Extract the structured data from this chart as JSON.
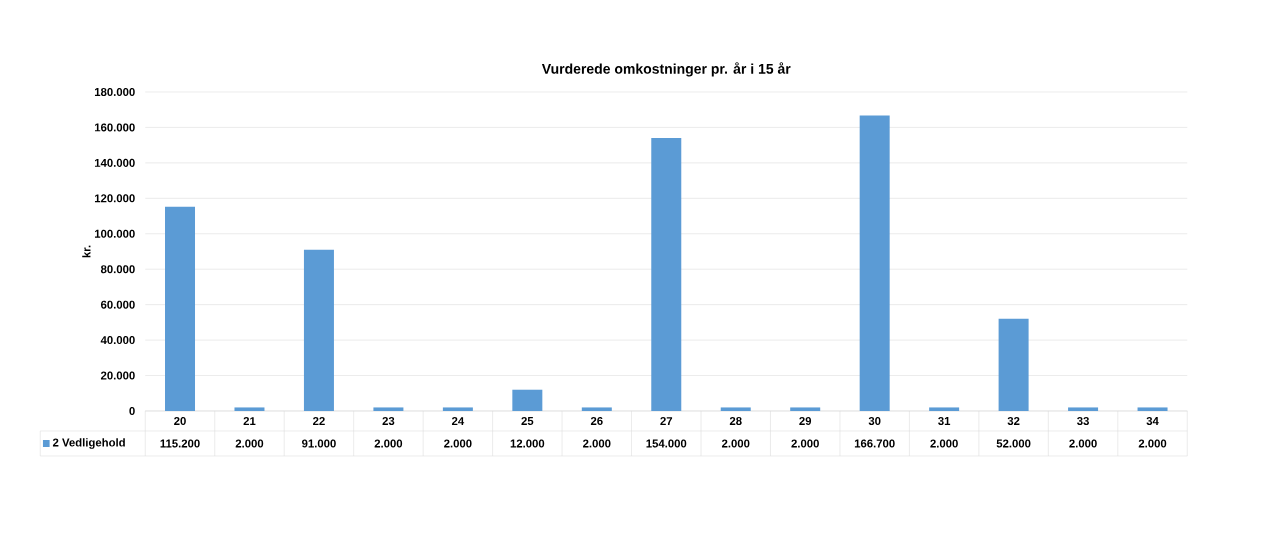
{
  "chart_data": {
    "type": "bar",
    "title": "Vurderede omkostninger pr. år i 15 år",
    "ylabel": "kr.",
    "categories": [
      "20",
      "21",
      "22",
      "23",
      "24",
      "25",
      "26",
      "27",
      "28",
      "29",
      "30",
      "31",
      "32",
      "33",
      "34"
    ],
    "series": [
      {
        "name": "2 Vedligehold",
        "color": "#5b9bd5",
        "values": [
          115200,
          2000,
          91000,
          2000,
          2000,
          12000,
          2000,
          154000,
          2000,
          2000,
          166700,
          2000,
          52000,
          2000,
          2000
        ],
        "value_labels": [
          "115.200",
          "2.000",
          "91.000",
          "2.000",
          "2.000",
          "12.000",
          "2.000",
          "154.000",
          "2.000",
          "2.000",
          "166.700",
          "2.000",
          "52.000",
          "2.000",
          "2.000"
        ]
      }
    ],
    "ylim": [
      0,
      180000
    ],
    "yticks": [
      0,
      {
        "value": 20000,
        "label": "20.000"
      },
      {
        "value": 40000,
        "label": "40.000"
      },
      {
        "value": 60000,
        "label": "60.000"
      },
      {
        "value": 80000,
        "label": "80.000"
      },
      {
        "value": 100000,
        "label": "100.000"
      },
      {
        "value": 120000,
        "label": "120.000"
      },
      {
        "value": 140000,
        "label": "140.000"
      },
      {
        "value": 160000,
        "label": "160.000"
      },
      {
        "value": 180000,
        "label": "180.000"
      }
    ],
    "grid": "y",
    "legend": "bottom"
  }
}
